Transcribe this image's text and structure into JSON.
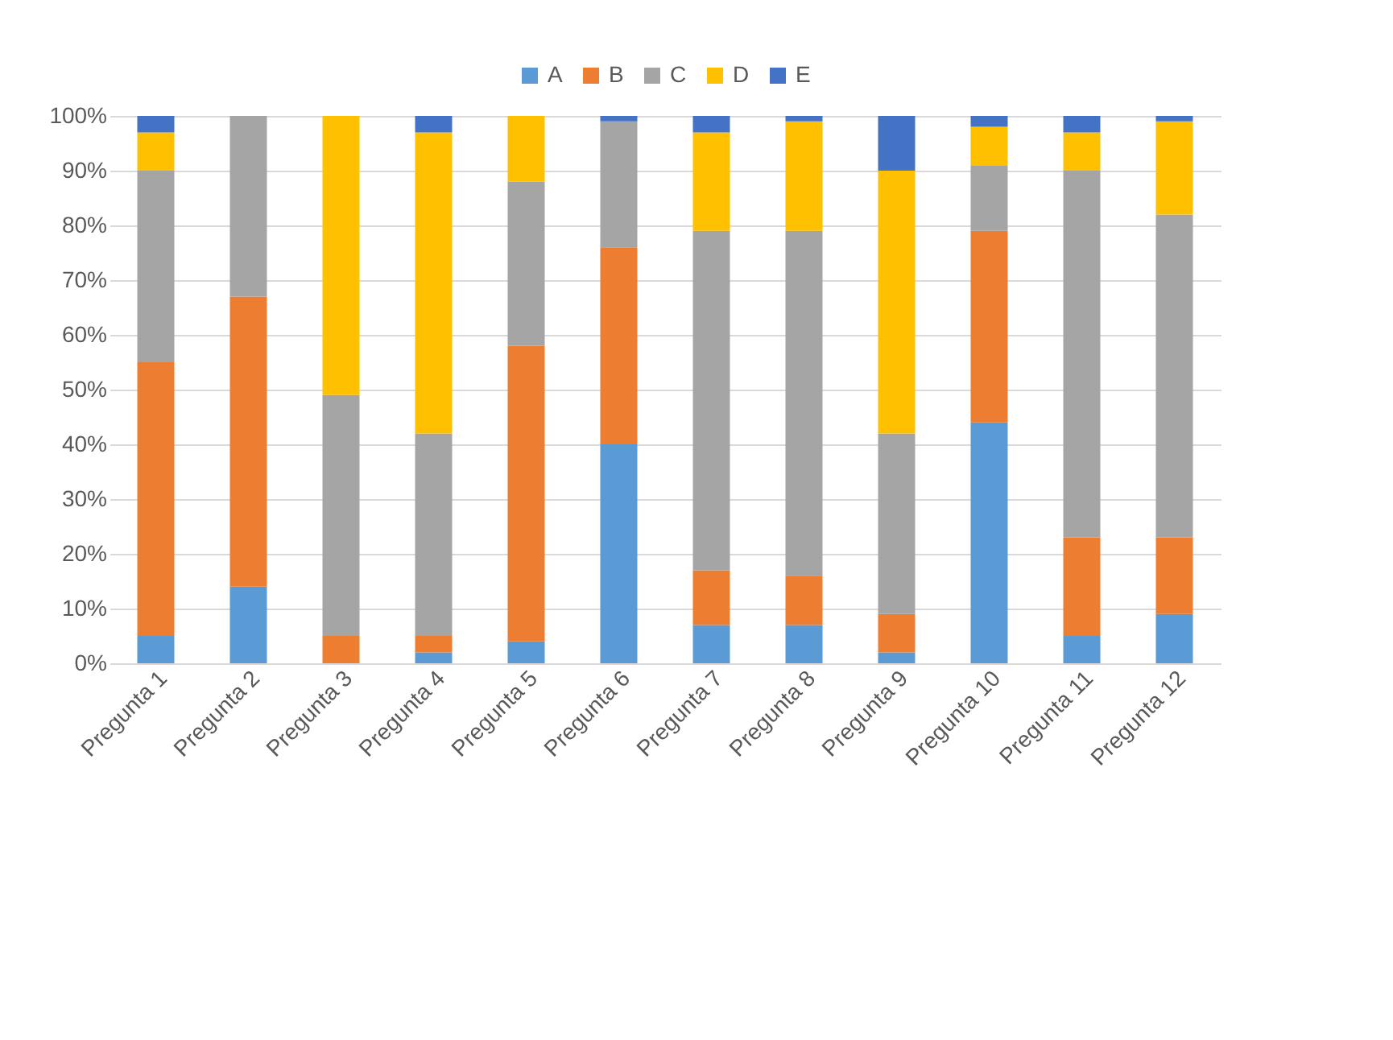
{
  "chart_data": {
    "type": "bar",
    "stacked": true,
    "categories": [
      "Pregunta 1",
      "Pregunta 2",
      "Pregunta 3",
      "Pregunta 4",
      "Pregunta 5",
      "Pregunta 6",
      "Pregunta 7",
      "Pregunta 8",
      "Pregunta 9",
      "Pregunta 10",
      "Pregunta 11",
      "Pregunta 12"
    ],
    "series": [
      {
        "name": "A",
        "color": "#5b9bd5",
        "values": [
          5,
          14,
          0,
          2,
          4,
          40,
          7,
          7,
          2,
          44,
          5,
          9
        ]
      },
      {
        "name": "B",
        "color": "#ed7d31",
        "values": [
          50,
          53,
          5,
          3,
          54,
          36,
          10,
          9,
          7,
          35,
          18,
          14
        ]
      },
      {
        "name": "C",
        "color": "#a5a5a5",
        "values": [
          35,
          33,
          44,
          37,
          30,
          23,
          62,
          63,
          33,
          12,
          67,
          59
        ]
      },
      {
        "name": "D",
        "color": "#ffc000",
        "values": [
          7,
          0,
          51,
          55,
          12,
          0,
          18,
          20,
          48,
          7,
          7,
          17
        ]
      },
      {
        "name": "E",
        "color": "#4472c4",
        "values": [
          3,
          0,
          0,
          3,
          0,
          1,
          3,
          1,
          10,
          2,
          3,
          1
        ]
      }
    ],
    "ylim": [
      0,
      100
    ],
    "yticks": [
      {
        "value": 0,
        "label": "0%"
      },
      {
        "value": 10,
        "label": "10%"
      },
      {
        "value": 20,
        "label": "20%"
      },
      {
        "value": 30,
        "label": "30%"
      },
      {
        "value": 40,
        "label": "40%"
      },
      {
        "value": 50,
        "label": "50%"
      },
      {
        "value": 60,
        "label": "60%"
      },
      {
        "value": 70,
        "label": "70%"
      },
      {
        "value": 80,
        "label": "80%"
      },
      {
        "value": 90,
        "label": "90%"
      },
      {
        "value": 100,
        "label": "100%"
      }
    ],
    "grid": "y",
    "legend": "top"
  }
}
